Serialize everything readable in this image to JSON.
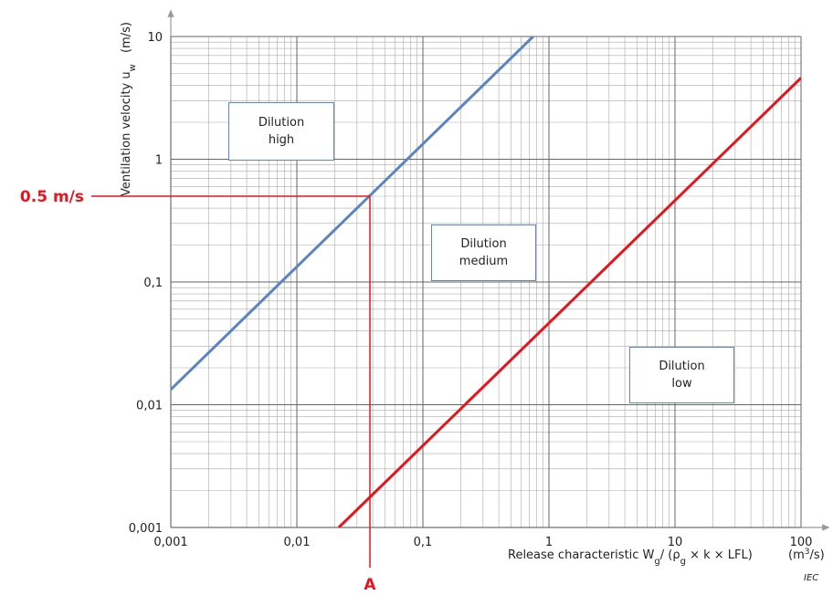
{
  "chart_data": {
    "type": "line",
    "x_label_parts": [
      "Release characteristic W",
      "g",
      "/ (ρ",
      "g",
      " × k × LFL)"
    ],
    "x_unit_parts": [
      "(m",
      "3",
      "/s)"
    ],
    "y_label_parts": [
      "Ventilation velocity u",
      "w"
    ],
    "y_unit": "(m/s)",
    "log_x": true,
    "log_y": true,
    "grid": true,
    "xlim": [
      0.001,
      100
    ],
    "ylim": [
      0.001,
      10
    ],
    "xticks": [
      {
        "value": 0.001,
        "label": "0,001"
      },
      {
        "value": 0.01,
        "label": "0,01"
      },
      {
        "value": 0.1,
        "label": "0,1"
      },
      1,
      10,
      100
    ],
    "yticks": [
      {
        "value": 0.001,
        "label": "0,001"
      },
      {
        "value": 0.01,
        "label": "0,01"
      },
      {
        "value": 0.1,
        "label": "0,1"
      },
      1,
      10
    ],
    "series": [
      {
        "color": "#5a85c0",
        "x": [
          0.001,
          0.75
        ],
        "values": [
          0.0133,
          10
        ]
      },
      {
        "color": "#e8141b",
        "x": [
          0.0215,
          100
        ],
        "values": [
          0.001,
          4.6
        ]
      }
    ],
    "regions": [
      "Dilution high",
      "Dilution medium",
      "Dilution low"
    ],
    "marker": {
      "y": 0.5,
      "y_label": "0.5 m/s",
      "x": 0.038,
      "x_label": "A",
      "color": "#e8141b"
    },
    "source": "IEC"
  }
}
